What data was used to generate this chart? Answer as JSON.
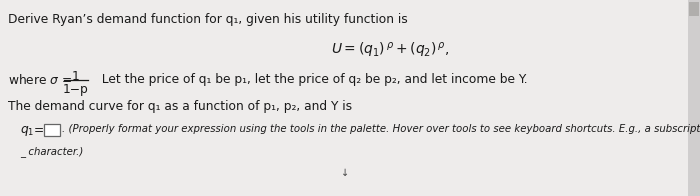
{
  "bg_color": "#eeeceb",
  "text_color": "#1a1a1a",
  "title_line": "Derive Ryan’s demand function for q₁, given his utility function is",
  "where_frac_num": "1",
  "where_frac_den": "1−p",
  "where_suffix": "  Let the price of q₁ be p₁, let the price of q₂ be p₂, and let income be Y.",
  "demand_line": "The demand curve for q₁ as a function of p₁, p₂, and Y is",
  "answer_suffix": ". (Properly format your expression using the tools in the palette. Hover over tools to see keyboard shortcuts. E.g., a subscript can be created with the",
  "answer_suffix2": "_ character.)",
  "font_size_main": 8.8,
  "font_size_utility": 10.0
}
